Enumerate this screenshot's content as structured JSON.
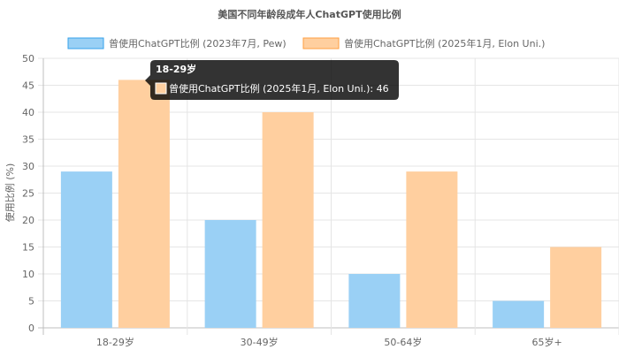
{
  "chart_data": {
    "type": "bar",
    "title": "美国不同年龄段成年人ChatGPT使用比例",
    "xlabel": "",
    "ylabel": "使用比例 (%)",
    "categories": [
      "18-29岁",
      "30-49岁",
      "50-64岁",
      "65岁+"
    ],
    "ylim": [
      0,
      50
    ],
    "yticks": [
      0,
      5,
      10,
      15,
      20,
      25,
      30,
      35,
      40,
      45,
      50
    ],
    "grid": true,
    "legend_position": "top",
    "series": [
      {
        "name": "曾使用ChatGPT比例 (2023年7月, Pew)",
        "values": [
          29,
          20,
          10,
          5
        ],
        "fill": "#9ad0f5",
        "stroke": "#36a2eb"
      },
      {
        "name": "曾使用ChatGPT比例 (2025年1月, Elon Uni.)",
        "values": [
          46,
          40,
          29,
          15
        ],
        "fill": "#ffcf9f",
        "stroke": "#ff9f40"
      }
    ],
    "tooltip": {
      "title": "18-29岁",
      "label": "曾使用ChatGPT比例 (2025年1月, Elon Uni.): 46",
      "category_index": 0,
      "series_index": 1
    }
  }
}
